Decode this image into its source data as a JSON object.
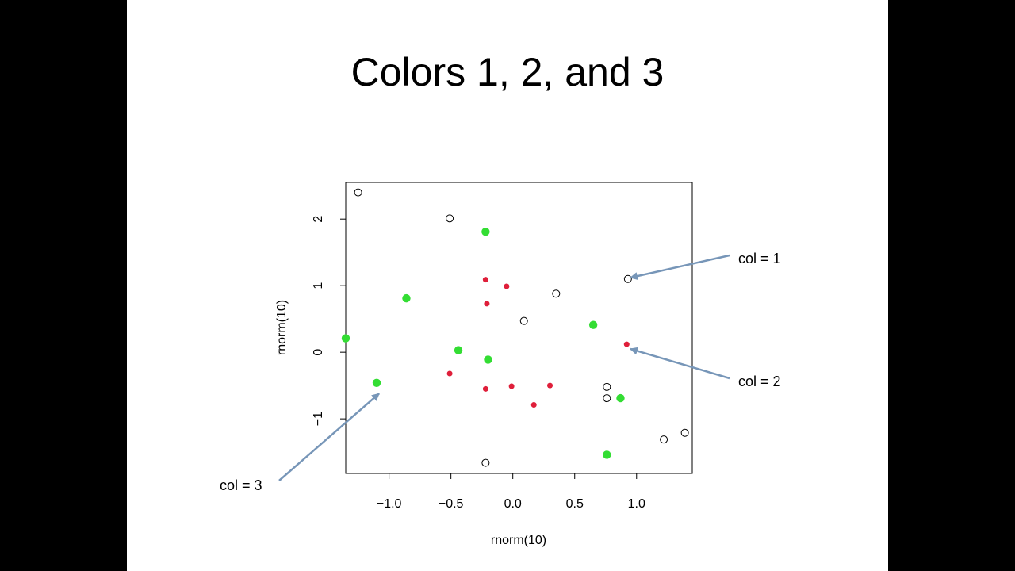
{
  "slide": {
    "title": "Colors 1, 2, and 3"
  },
  "chart_data": {
    "type": "scatter",
    "title": "",
    "xlabel": "rnorm(10)",
    "ylabel": "rnorm(10)",
    "xlim": [
      -1.35,
      1.45
    ],
    "ylim": [
      -1.82,
      2.55
    ],
    "xticks": [
      -1.0,
      -0.5,
      0.0,
      0.5,
      1.0
    ],
    "xtick_labels": [
      "−1.0",
      "−0.5",
      "0.0",
      "0.5",
      "1.0"
    ],
    "yticks": [
      -1,
      0,
      1,
      2
    ],
    "ytick_labels": [
      "−1",
      "0",
      "1",
      "2"
    ],
    "grid": false,
    "legend": "none",
    "series": [
      {
        "color_code": 1,
        "color": "#000000",
        "marker": "open-circle",
        "points": [
          [
            -1.25,
            2.4
          ],
          [
            -0.51,
            2.01
          ],
          [
            0.93,
            1.1
          ],
          [
            0.35,
            0.88
          ],
          [
            0.09,
            0.47
          ],
          [
            0.76,
            -0.52
          ],
          [
            0.76,
            -0.69
          ],
          [
            1.39,
            -1.21
          ],
          [
            1.22,
            -1.31
          ],
          [
            -0.22,
            -1.66
          ]
        ]
      },
      {
        "color_code": 2,
        "color": "#df1f3a",
        "marker": "small-filled-circle",
        "points": [
          [
            -0.22,
            1.09
          ],
          [
            -0.05,
            0.99
          ],
          [
            -0.21,
            0.73
          ],
          [
            0.92,
            0.12
          ],
          [
            -0.51,
            -0.32
          ],
          [
            -0.22,
            -0.55
          ],
          [
            -0.01,
            -0.51
          ],
          [
            0.3,
            -0.5
          ],
          [
            0.17,
            -0.79
          ]
        ]
      },
      {
        "color_code": 3,
        "color": "#33dd33",
        "marker": "filled-circle",
        "points": [
          [
            -0.22,
            1.81
          ],
          [
            -0.86,
            0.81
          ],
          [
            0.65,
            0.41
          ],
          [
            -1.35,
            0.21
          ],
          [
            -0.44,
            0.03
          ],
          [
            -0.2,
            -0.11
          ],
          [
            -1.1,
            -0.46
          ],
          [
            0.87,
            -0.69
          ],
          [
            0.76,
            -1.54
          ]
        ]
      }
    ],
    "annotations": [
      {
        "id": "col1",
        "text": "col = 1",
        "points_to": [
          0.95,
          1.12
        ]
      },
      {
        "id": "col2",
        "text": "col = 2",
        "points_to": [
          0.95,
          0.05
        ]
      },
      {
        "id": "col3",
        "text": "col = 3",
        "points_to": [
          -1.08,
          -0.62
        ]
      }
    ],
    "arrow_color": "#7796b8"
  }
}
